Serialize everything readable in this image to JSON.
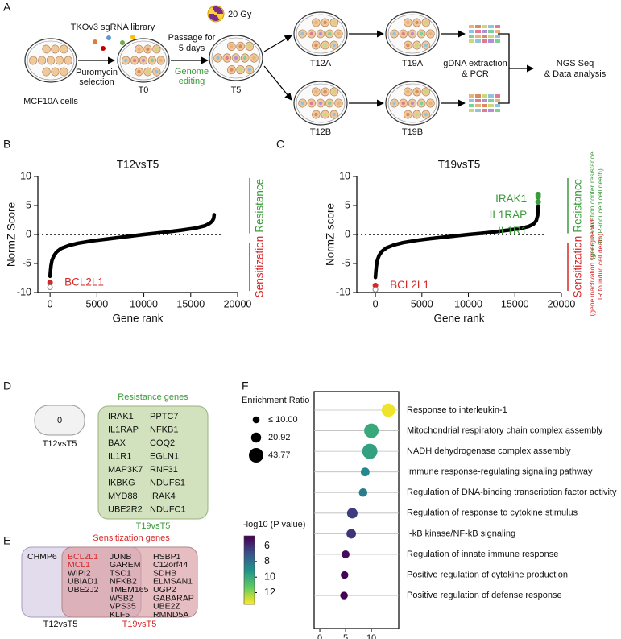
{
  "panel_labels": [
    "A",
    "B",
    "C",
    "D",
    "E",
    "F"
  ],
  "panel_a": {
    "library": "TKOv3 sgRNA library",
    "selection": [
      "Puromycin",
      "selection"
    ],
    "cells": "MCF10A cells",
    "t0": "T0",
    "passage": [
      "Passage for",
      "5 days"
    ],
    "editing": [
      "Genome",
      "editing"
    ],
    "dose": "20 Gy",
    "t5": "T5",
    "t12a": "T12A",
    "t19a": "T19A",
    "t12b": "T12B",
    "t19b": "T19B",
    "extraction": [
      "gDNA extraction",
      "& PCR"
    ],
    "analysis": [
      "NGS Seq",
      "& Data analysis"
    ]
  },
  "chart_data": [
    {
      "type": "rank",
      "title": "T12vsT5",
      "xlabel": "Gene rank",
      "ylabel": "NormZ Score",
      "xlim": [
        -1300,
        20000
      ],
      "xticks": [
        0,
        5000,
        10000,
        15000,
        20000
      ],
      "ylim": [
        -10,
        10
      ],
      "yticks": [
        -10,
        -5,
        0,
        5,
        10
      ],
      "hline": 0,
      "color": "#000000",
      "x": [
        0,
        50,
        100,
        200,
        400,
        700,
        1200,
        2000,
        3000,
        4500,
        6000,
        8000,
        10000,
        12000,
        14000,
        15500,
        16500,
        17000,
        17300,
        17450,
        17500
      ],
      "values": [
        -7.2,
        -6.2,
        -5.4,
        -4.5,
        -3.7,
        -3.0,
        -2.4,
        -1.9,
        -1.5,
        -1.1,
        -0.8,
        -0.4,
        0,
        0.35,
        0.75,
        1.1,
        1.5,
        1.9,
        2.3,
        2.8,
        3.4
      ],
      "highlights": [
        {
          "label": "BCL2L1",
          "x": 0,
          "y": -8.3,
          "color": "#d62728"
        },
        {
          "x": 0,
          "y": -9.1,
          "color": "#888888"
        }
      ],
      "annotations": [
        {
          "text": "Resistance",
          "color": "#3b9a3b"
        },
        {
          "text": "Sensitization",
          "color": "#d62728"
        }
      ]
    },
    {
      "type": "rank",
      "title": "T19vsT5",
      "xlabel": "Gene rank",
      "ylabel": "NormZ score",
      "xlim": [
        -2000,
        20000
      ],
      "xticks": [
        0,
        5000,
        10000,
        15000,
        20000
      ],
      "ylim": [
        -10,
        10
      ],
      "yticks": [
        -10,
        -5,
        0,
        5,
        10
      ],
      "hline": 0,
      "color": "#000000",
      "x": [
        0,
        50,
        100,
        200,
        400,
        700,
        1200,
        2000,
        3000,
        4500,
        6000,
        8000,
        10000,
        12000,
        14000,
        15500,
        16500,
        17000,
        17300,
        17450,
        17500
      ],
      "values": [
        -7.4,
        -6.4,
        -5.5,
        -4.5,
        -3.6,
        -2.9,
        -2.3,
        -1.8,
        -1.4,
        -1.0,
        -0.7,
        -0.35,
        0,
        0.3,
        0.7,
        1.0,
        1.4,
        1.8,
        2.4,
        3.3,
        4.8
      ],
      "highlights": [
        {
          "label": "IRAK1",
          "x": 17500,
          "y": 6.9,
          "color": "#3b9a3b"
        },
        {
          "label": "IL1RAP",
          "x": 17500,
          "y": 6.5,
          "color": "#3b9a3b"
        },
        {
          "label": "IL1R1",
          "x": 17500,
          "y": 5.6,
          "color": "#3b9a3b"
        },
        {
          "label": "BCL2L1",
          "x": 0,
          "y": -8.8,
          "color": "#d62728"
        },
        {
          "x": 0,
          "y": -9.5,
          "color": "#888888"
        }
      ],
      "annotations": [
        {
          "text": "Resistance",
          "color": "#3b9a3b",
          "note": [
            "(gene inactivation confer resistance",
            "to IR-induced cell death)"
          ]
        },
        {
          "text": "Sensitization",
          "color": "#d62728",
          "note": [
            "(gene inactivation synergize with",
            "IR to induc cell death)"
          ]
        }
      ]
    },
    {
      "type": "dot",
      "xlabel": "-log10 (P value)",
      "categories": [
        "Response to interleukin-1",
        "Mitochondrial respiratory chain complex assembly",
        "NADH dehydrogenase complex assembly",
        "Immune response-regulating signaling pathway",
        "Regulation of DNA-binding transcription factor activity",
        "Regulation of response to cytokine stimulus",
        "I-kB kinase/NF-kB signaling",
        "Regulation of innate immune response",
        "Positive regulation of cytokine production",
        "Positive regulation of defense response"
      ],
      "values": [
        13.3,
        10.0,
        9.7,
        8.8,
        8.4,
        6.3,
        6.1,
        5.0,
        4.8,
        4.7
      ],
      "sizes": [
        38,
        43,
        48,
        16,
        15,
        23,
        19,
        13,
        12,
        12
      ],
      "xlim": [
        -1.1,
        15.3
      ],
      "xticks": [
        0,
        5,
        10
      ],
      "grid": true,
      "size_legend": {
        "title": "Enrichment Ratio",
        "ticks": [
          {
            "value": 10,
            "label": "≤ 10.00"
          },
          20.92,
          43.77
        ]
      },
      "color_legend": {
        "title": "-log10 (P value)",
        "lim": [
          4.7,
          13.5
        ],
        "ticks": [
          6,
          8,
          10,
          12
        ],
        "colors": [
          "#440154",
          "#3b528b",
          "#21918c",
          "#5ec962",
          "#fde725"
        ]
      }
    }
  ],
  "panel_d": {
    "title": "Resistance genes",
    "left_count": "0",
    "left_label": "T12vsT5",
    "right_label": "T19vsT5",
    "columns": [
      [
        "IRAK1",
        "IL1RAP",
        "BAX",
        "IL1R1",
        "MAP3K7",
        "IKBKG",
        "MYD88",
        "UBE2R2"
      ],
      [
        "PPTC7",
        "NFKB1",
        "COQ2",
        "EGLN1",
        "RNF31",
        "NDUFS1",
        "IRAK4",
        "NDUFC1"
      ]
    ]
  },
  "panel_e": {
    "title": "Sensitization genes",
    "left_only": "CHMP6",
    "left_label": "T12vsT5",
    "right_label": "T19vsT5",
    "overlap": [
      {
        "name": "BCL2L1",
        "color": "#d62728"
      },
      {
        "name": "MCL1",
        "color": "#d62728"
      },
      {
        "name": "WIPI2",
        "color": "#111111"
      },
      {
        "name": "UBIAD1",
        "color": "#111111"
      },
      {
        "name": "UBE2J2",
        "color": "#111111"
      }
    ],
    "columns": [
      [
        "JUNB",
        "GAREM",
        "TSC1",
        "NFKB2",
        "TMEM165",
        "WSB2",
        "VPS35",
        "KLF5"
      ],
      [
        "HSBP1",
        "C12orf44",
        "SDHB",
        "ELMSAN1",
        "UGP2",
        "GABARAP",
        "UBE2Z",
        "RMND5A"
      ]
    ]
  }
}
